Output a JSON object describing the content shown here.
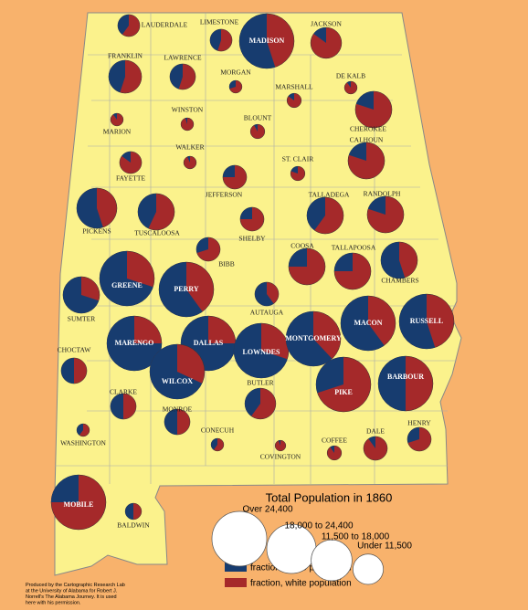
{
  "counties": [
    {
      "name": "LAUDERDALE",
      "population": 4200,
      "slave_pct": 40
    },
    {
      "name": "LIMESTONE",
      "population": 4200,
      "slave_pct": 45
    },
    {
      "name": "MADISON",
      "population": 26000,
      "slave_pct": 55
    },
    {
      "name": "JACKSON",
      "population": 8300,
      "slave_pct": 15
    },
    {
      "name": "FRANKLIN",
      "population": 9400,
      "slave_pct": 45
    },
    {
      "name": "LAWRENCE",
      "population": 5700,
      "slave_pct": 45
    },
    {
      "name": "MORGAN",
      "population": 1400,
      "slave_pct": 30
    },
    {
      "name": "DE KALB",
      "population": 1400,
      "slave_pct": 10
    },
    {
      "name": "MARSHALL",
      "population": 1800,
      "slave_pct": 15
    },
    {
      "name": "CHEROKEE",
      "population": 11600,
      "slave_pct": 20
    },
    {
      "name": "MARION",
      "population": 1400,
      "slave_pct": 10
    },
    {
      "name": "WINSTON",
      "population": 1400,
      "slave_pct": 5
    },
    {
      "name": "BLOUNT",
      "population": 1800,
      "slave_pct": 8
    },
    {
      "name": "WALKER",
      "population": 1400,
      "slave_pct": 7
    },
    {
      "name": "CALHOUN",
      "population": 11600,
      "slave_pct": 20
    },
    {
      "name": "ST. CLAIR",
      "population": 1800,
      "slave_pct": 20
    },
    {
      "name": "FAYETTE",
      "population": 4200,
      "slave_pct": 15
    },
    {
      "name": "JEFFERSON",
      "population": 4900,
      "slave_pct": 25
    },
    {
      "name": "TALLADEGA",
      "population": 11600,
      "slave_pct": 40
    },
    {
      "name": "RANDOLPH",
      "population": 11600,
      "slave_pct": 20
    },
    {
      "name": "PICKENS",
      "population": 14000,
      "slave_pct": 55
    },
    {
      "name": "TUSCALOOSA",
      "population": 11600,
      "slave_pct": 43
    },
    {
      "name": "SHELBY",
      "population": 4900,
      "slave_pct": 25
    },
    {
      "name": "BIBB",
      "population": 4900,
      "slave_pct": 30
    },
    {
      "name": "COOSA",
      "population": 11600,
      "slave_pct": 25
    },
    {
      "name": "TALLAPOOSA",
      "population": 11600,
      "slave_pct": 25
    },
    {
      "name": "CHAMBERS",
      "population": 11600,
      "slave_pct": 55
    },
    {
      "name": "GREENE",
      "population": 26000,
      "slave_pct": 70
    },
    {
      "name": "PERRY",
      "population": 26000,
      "slave_pct": 60
    },
    {
      "name": "SUMTER",
      "population": 11600,
      "slave_pct": 70
    },
    {
      "name": "AUTAUGA",
      "population": 4900,
      "slave_pct": 60
    },
    {
      "name": "MARENGO",
      "population": 26000,
      "slave_pct": 75
    },
    {
      "name": "DALLAS",
      "population": 26000,
      "slave_pct": 75
    },
    {
      "name": "LOWNDES",
      "population": 26000,
      "slave_pct": 70
    },
    {
      "name": "MONTGOMERY",
      "population": 26000,
      "slave_pct": 62
    },
    {
      "name": "MACON",
      "population": 26000,
      "slave_pct": 60
    },
    {
      "name": "RUSSELL",
      "population": 26000,
      "slave_pct": 55
    },
    {
      "name": "CHOCTAW",
      "population": 5700,
      "slave_pct": 50
    },
    {
      "name": "WILCOX",
      "population": 26000,
      "slave_pct": 68
    },
    {
      "name": "BUTLER",
      "population": 8300,
      "slave_pct": 40
    },
    {
      "name": "PIKE",
      "population": 26000,
      "slave_pct": 30
    },
    {
      "name": "BARBOUR",
      "population": 26000,
      "slave_pct": 50
    },
    {
      "name": "CLARKE",
      "population": 5700,
      "slave_pct": 50
    },
    {
      "name": "MONROE",
      "population": 5700,
      "slave_pct": 50
    },
    {
      "name": "HENRY",
      "population": 4900,
      "slave_pct": 30
    },
    {
      "name": "WASHINGTON",
      "population": 1400,
      "slave_pct": 40
    },
    {
      "name": "CONECUH",
      "population": 1400,
      "slave_pct": 40
    },
    {
      "name": "DALE",
      "population": 4900,
      "slave_pct": 10
    },
    {
      "name": "COFFEE",
      "population": 1800,
      "slave_pct": 10
    },
    {
      "name": "COVINGTON",
      "population": 1000,
      "slave_pct": 6
    },
    {
      "name": "MOBILE",
      "population": 26000,
      "slave_pct": 25
    },
    {
      "name": "BALDWIN",
      "population": 2300,
      "slave_pct": 50
    }
  ],
  "legend": {
    "title": "Total Population in 1860",
    "sizes": [
      {
        "label": "Over 24,400",
        "value": 26000
      },
      {
        "label": "18,000 to 24,400",
        "value": 21000
      },
      {
        "label": "11,500 to 18,000",
        "value": 14500
      },
      {
        "label": "Under 11,500",
        "value": 8000
      }
    ],
    "slave": "fraction, slave population",
    "white": "fraction, white population"
  },
  "credit": [
    "Produced by the Cartographic Research Lab",
    "at the University of Alabama for Robert J.",
    "Norrell's The Alabama Journey. It is used",
    "here with his permission."
  ]
}
